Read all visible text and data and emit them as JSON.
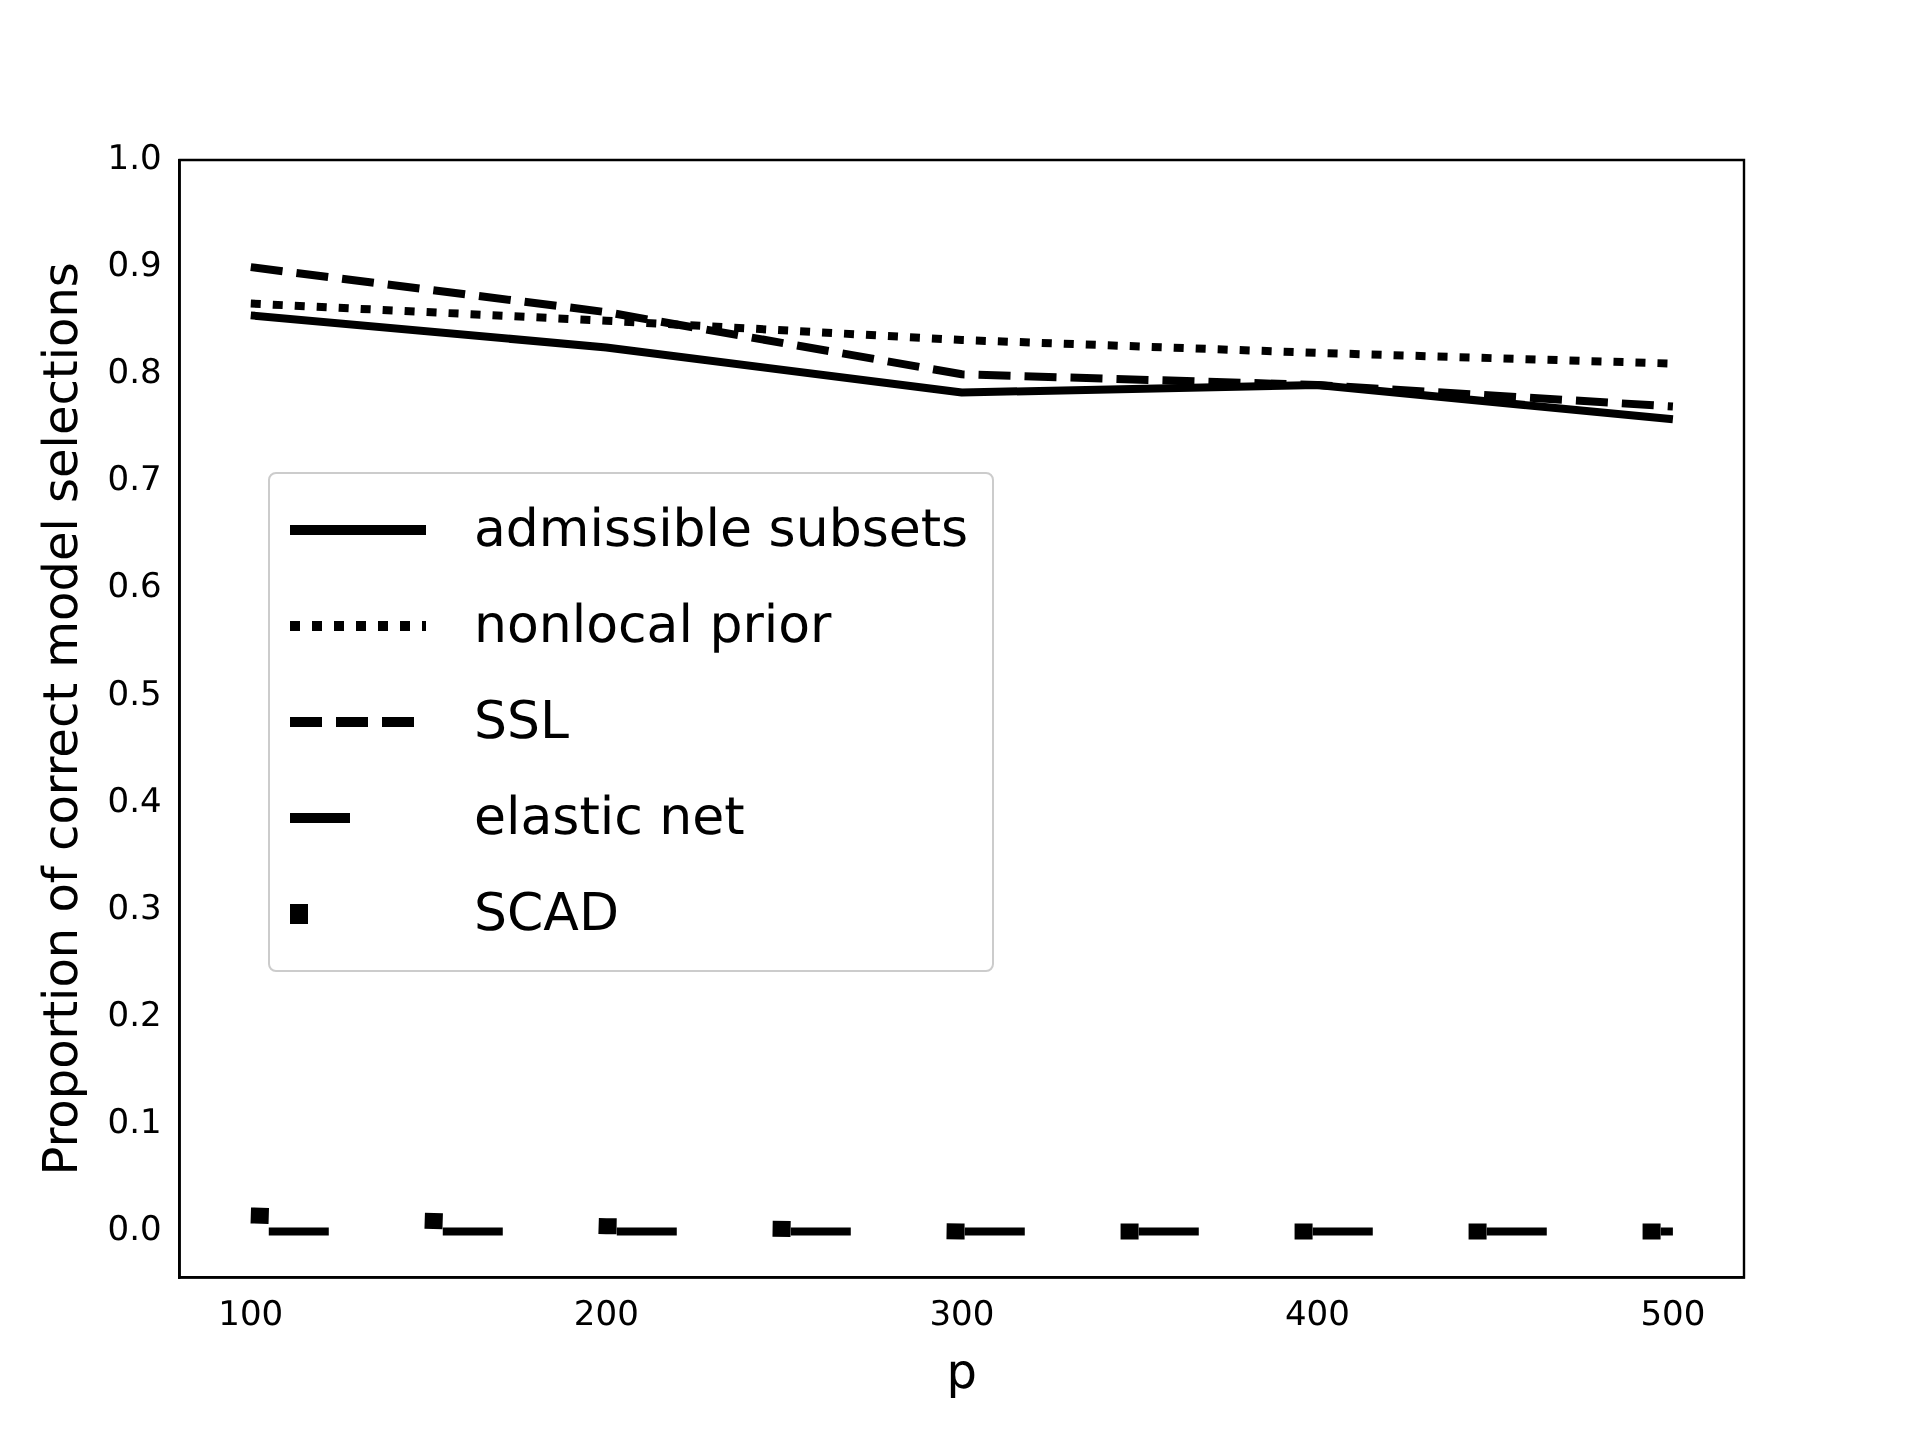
{
  "chart_data": {
    "type": "line",
    "xlabel": "p",
    "ylabel": "Proportion of correct model selections",
    "x": [
      100,
      200,
      300,
      400,
      500
    ],
    "series": [
      {
        "name": "admissible subsets",
        "color": "#000000",
        "line_style": "solid",
        "values": [
          0.855,
          0.825,
          0.783,
          0.79,
          0.758
        ]
      },
      {
        "name": "nonlocal prior",
        "color": "#000000",
        "line_style": "dotted",
        "values": [
          0.866,
          0.85,
          0.832,
          0.82,
          0.81
        ]
      },
      {
        "name": "SSL",
        "color": "#000000",
        "line_style": "dashed",
        "values": [
          0.9,
          0.858,
          0.8,
          0.79,
          0.77
        ]
      },
      {
        "name": "elastic net",
        "color": "#000000",
        "line_style": "dashed",
        "values": [
          0,
          0,
          0,
          0,
          0
        ]
      },
      {
        "name": "SCAD",
        "color": "#000000",
        "line_style": "dotted",
        "values": [
          0.015,
          0.005,
          0,
          0,
          0
        ]
      }
    ],
    "xlim": [
      80,
      520
    ],
    "xticks": [
      100,
      200,
      300,
      400,
      500
    ],
    "ylim": [
      -0.043,
      1.0
    ],
    "yticks": [
      {
        "value": 0,
        "label": "0.0"
      },
      0.1,
      0.2,
      0.3,
      0.4,
      0.5,
      0.6,
      0.7,
      0.8,
      0.9,
      {
        "value": 1,
        "label": "1.0"
      }
    ],
    "grid": false,
    "legend": "center left",
    "marker": "none"
  }
}
